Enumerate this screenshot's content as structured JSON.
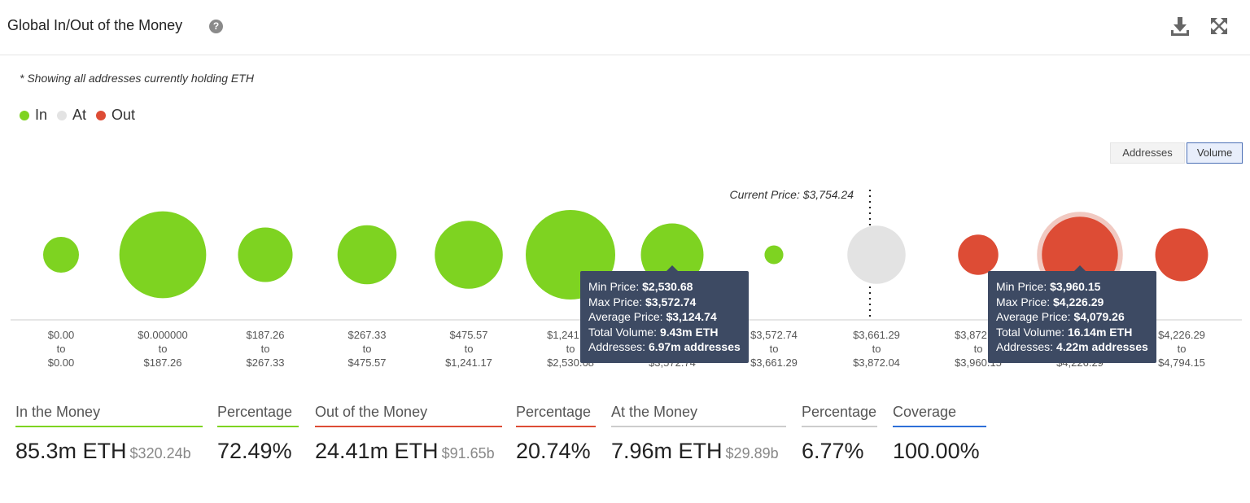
{
  "header": {
    "title": "Global In/Out of the Money",
    "help_glyph": "?",
    "help_icon": "question-circle-icon",
    "download_icon": "download-icon",
    "expand_icon": "expand-icon"
  },
  "note": "* Showing all addresses currently holding ETH",
  "legend": [
    {
      "label": "In",
      "color": "#7ed321"
    },
    {
      "label": "At",
      "color": "#e3e3e3"
    },
    {
      "label": "Out",
      "color": "#dd4c35"
    }
  ],
  "toggle": {
    "addresses_label": "Addresses",
    "volume_label": "Volume",
    "active": "Volume"
  },
  "chart_data": {
    "type": "bubble",
    "current_price_label": "Current Price: $3,754.24",
    "current_price_index": 8,
    "connector": "to",
    "clusters": [
      {
        "min": "$0.00",
        "max": "$0.00",
        "status": "In",
        "size": 0.4
      },
      {
        "min": "$0.000000",
        "max": "$187.26",
        "status": "In",
        "size": 0.97
      },
      {
        "min": "$187.26",
        "max": "$267.33",
        "status": "In",
        "size": 0.61
      },
      {
        "min": "$267.33",
        "max": "$475.57",
        "status": "In",
        "size": 0.66
      },
      {
        "min": "$475.57",
        "max": "$1,241.17",
        "status": "In",
        "size": 0.76
      },
      {
        "min": "$1,241.17",
        "max": "$2,530.68",
        "status": "In",
        "size": 1.0
      },
      {
        "min": "$2,530.68",
        "max": "$3,572.74",
        "status": "In",
        "size": 0.7
      },
      {
        "min": "$3,572.74",
        "max": "$3,661.29",
        "status": "In",
        "size": 0.21
      },
      {
        "min": "$3,661.29",
        "max": "$3,872.04",
        "status": "At",
        "size": 0.65
      },
      {
        "min": "$3,872.04",
        "max": "$3,960.15",
        "status": "Out",
        "size": 0.45
      },
      {
        "min": "$3,960.15",
        "max": "$4,226.29",
        "status": "Out",
        "size": 0.85
      },
      {
        "min": "$4,226.29",
        "max": "$4,794.15",
        "status": "Out",
        "size": 0.59
      }
    ],
    "colors": {
      "In": "#7ed321",
      "At": "#e3e3e3",
      "Out": "#dd4c35"
    }
  },
  "tooltips": [
    {
      "cluster_index": 6,
      "min_label": "Min Price:",
      "min_value": "$2,530.68",
      "max_label": "Max Price:",
      "max_value": "$3,572.74",
      "avg_label": "Average Price:",
      "avg_value": "$3,124.74",
      "vol_label": "Total Volume:",
      "vol_value": "9.43m ETH",
      "addr_label": "Addresses:",
      "addr_value": "6.97m addresses"
    },
    {
      "cluster_index": 10,
      "min_label": "Min Price:",
      "min_value": "$3,960.15",
      "max_label": "Max Price:",
      "max_value": "$4,226.29",
      "avg_label": "Average Price:",
      "avg_value": "$4,079.26",
      "vol_label": "Total Volume:",
      "vol_value": "16.14m ETH",
      "addr_label": "Addresses:",
      "addr_value": "4.22m addresses"
    }
  ],
  "stats": [
    {
      "label": "In the Money",
      "value": "85.3m ETH",
      "sub": "$320.24b",
      "color": "#7ed321"
    },
    {
      "label": "Percentage",
      "value": "72.49%",
      "sub": "",
      "color": "#7ed321"
    },
    {
      "label": "Out of the Money",
      "value": "24.41m ETH",
      "sub": "$91.65b",
      "color": "#dd4c35"
    },
    {
      "label": "Percentage",
      "value": "20.74%",
      "sub": "",
      "color": "#dd4c35"
    },
    {
      "label": "At the Money",
      "value": "7.96m ETH",
      "sub": "$29.89b",
      "color": "#cccccc"
    },
    {
      "label": "Percentage",
      "value": "6.77%",
      "sub": "",
      "color": "#cccccc"
    },
    {
      "label": "Coverage",
      "value": "100.00%",
      "sub": "",
      "color": "#2e6fd8"
    }
  ]
}
